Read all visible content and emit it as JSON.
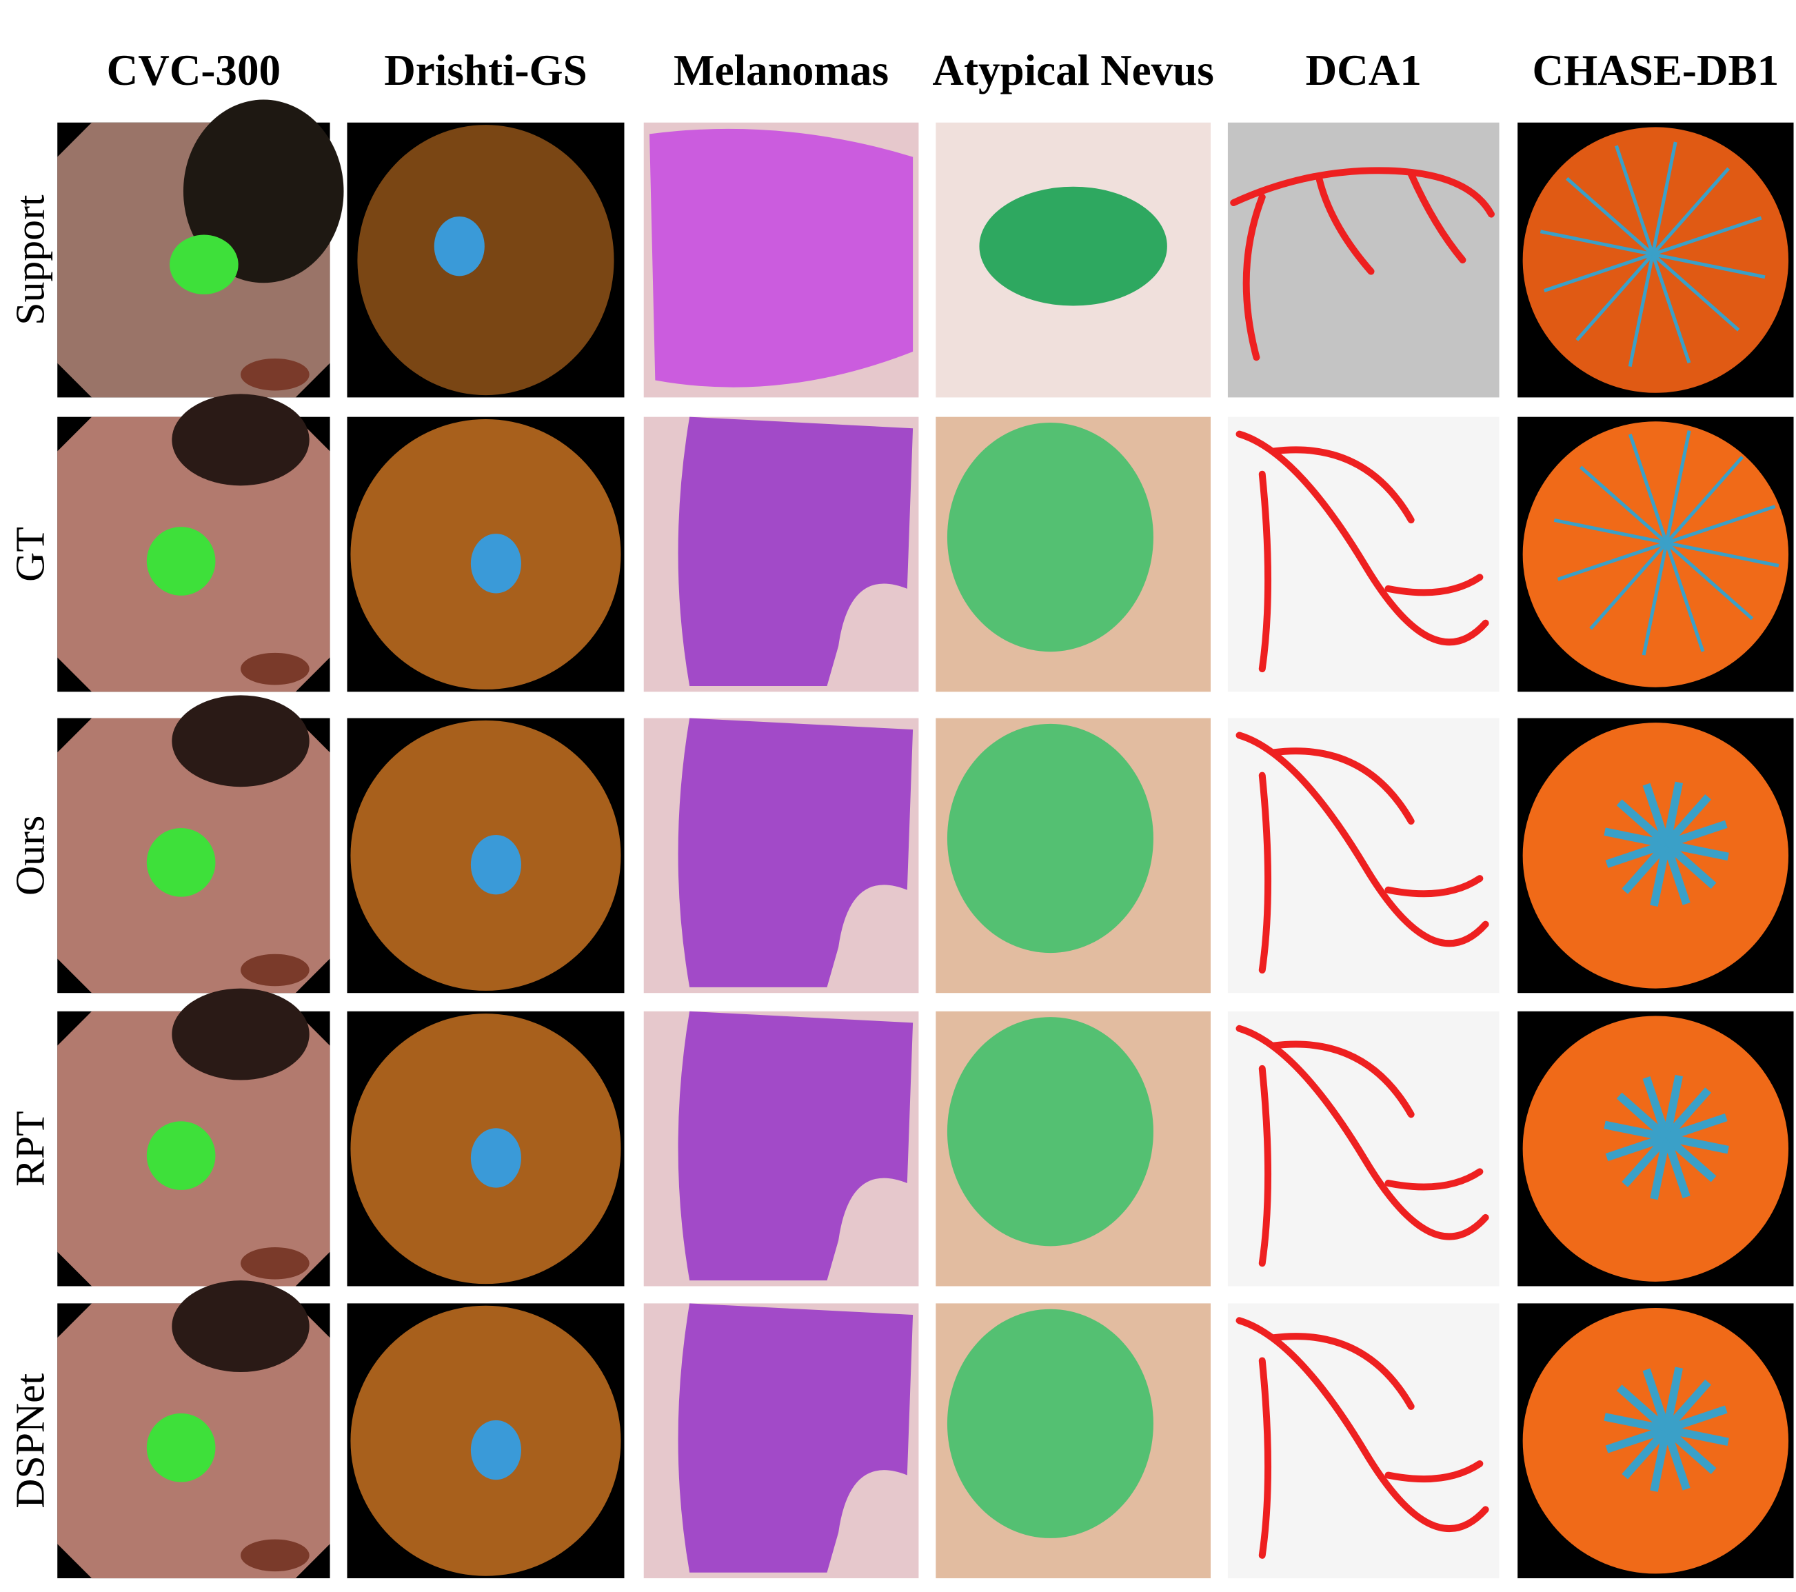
{
  "columns": [
    "CVC-300",
    "Drishti-GS",
    "Melanomas",
    "Atypical Nevus",
    "DCA1",
    "CHASE-DB1"
  ],
  "rows": [
    "Support",
    "GT",
    "Ours",
    "RPT",
    "DSPNet"
  ]
}
